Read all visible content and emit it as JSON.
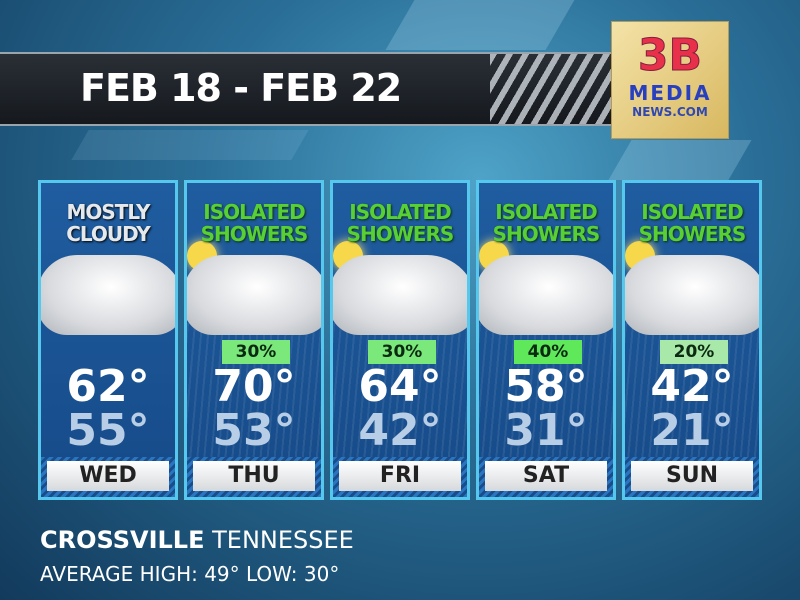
{
  "header": {
    "title": "FEB 18 - FEB 22"
  },
  "logo": {
    "line1": "3B",
    "line2": "MEDIA",
    "line3": "NEWS.COM"
  },
  "days": [
    {
      "day": "WED",
      "condition": "MOSTLY CLOUDY",
      "icon": "cloud-icon",
      "high": "62°",
      "low": "55°",
      "precip": null
    },
    {
      "day": "THU",
      "condition": "ISOLATED SHOWERS",
      "icon": "sun-cloud-rain-icon",
      "high": "70°",
      "low": "53°",
      "precip": "30%",
      "precip_color": "#7ae87a"
    },
    {
      "day": "FRI",
      "condition": "ISOLATED SHOWERS",
      "icon": "sun-cloud-rain-icon",
      "high": "64°",
      "low": "42°",
      "precip": "30%",
      "precip_color": "#7ae87a"
    },
    {
      "day": "SAT",
      "condition": "ISOLATED SHOWERS",
      "icon": "sun-cloud-rain-icon",
      "high": "58°",
      "low": "31°",
      "precip": "40%",
      "precip_color": "#5ee85a"
    },
    {
      "day": "SUN",
      "condition": "ISOLATED SHOWERS",
      "icon": "sun-cloud-rain-icon",
      "high": "42°",
      "low": "21°",
      "precip": "20%",
      "precip_color": "#a8e8a8"
    }
  ],
  "footer": {
    "city": "CROSSVILLE",
    "state": "TENNESSEE",
    "average": "AVERAGE HIGH: 49° LOW: 30°"
  },
  "colors": {
    "card_border": "#56c8ee",
    "condition_green": "#58d034"
  }
}
